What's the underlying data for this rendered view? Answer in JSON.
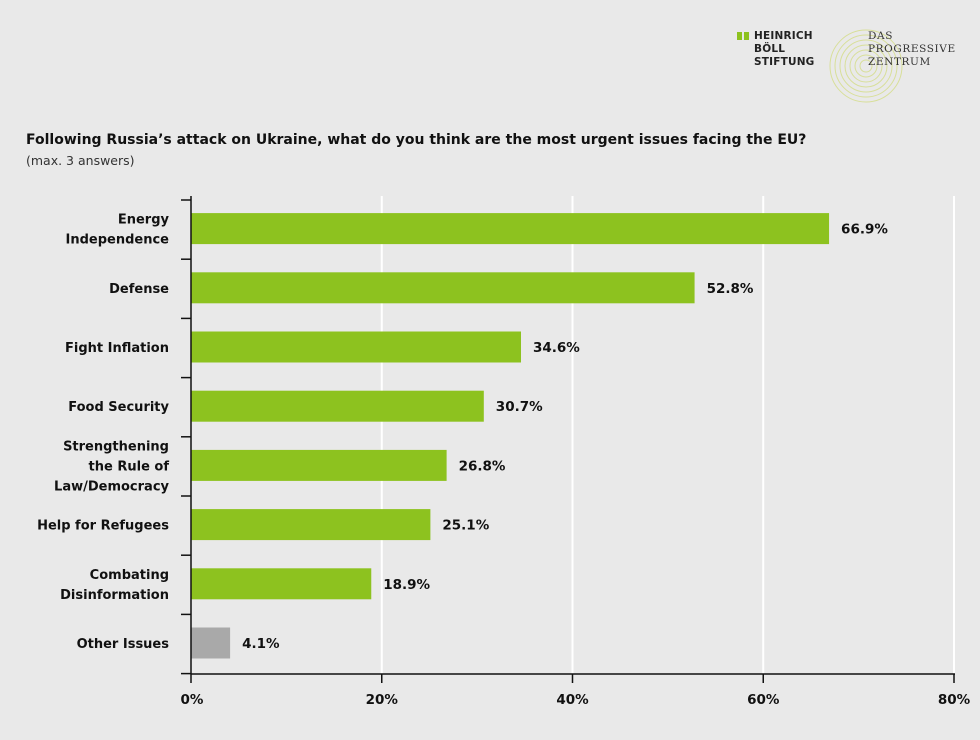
{
  "logos": {
    "boell": [
      "HEINRICH",
      "BÖLL",
      "STIFTUNG"
    ],
    "progressive": [
      "DAS",
      "PROGRESSIVE",
      "ZENTRUM"
    ]
  },
  "colors": {
    "background": "#e9e9e9",
    "bar": "#8dc21f",
    "bar_other": "#a9a9a9",
    "grid": "#ffffff",
    "axis": "#111111"
  },
  "chart_data": {
    "type": "bar",
    "orientation": "horizontal",
    "title": "Following Russia’s attack on Ukraine, what do you think are the most urgent issues facing the EU?",
    "subtitle": "(max. 3 answers)",
    "categories": [
      [
        "Energy",
        "Independence"
      ],
      [
        "Defense"
      ],
      [
        "Fight Inflation"
      ],
      [
        "Food Security"
      ],
      [
        "Strengthening",
        "the Rule of",
        "Law/Democracy"
      ],
      [
        "Help for Refugees"
      ],
      [
        "Combating",
        "Disinformation"
      ],
      [
        "Other Issues"
      ]
    ],
    "values": [
      66.9,
      52.8,
      34.6,
      30.7,
      26.8,
      25.1,
      18.9,
      4.1
    ],
    "value_labels": [
      "66.9%",
      "52.8%",
      "34.6%",
      "30.7%",
      "26.8%",
      "25.1%",
      "18.9%",
      "4.1%"
    ],
    "bar_colors": [
      "#8dc21f",
      "#8dc21f",
      "#8dc21f",
      "#8dc21f",
      "#8dc21f",
      "#8dc21f",
      "#8dc21f",
      "#a9a9a9"
    ],
    "xlim": [
      0,
      80
    ],
    "xticks": [
      0,
      20,
      40,
      60,
      80
    ],
    "xtick_labels": [
      "0%",
      "20%",
      "40%",
      "60%",
      "80%"
    ],
    "grid": "vertical",
    "legend": "none"
  }
}
